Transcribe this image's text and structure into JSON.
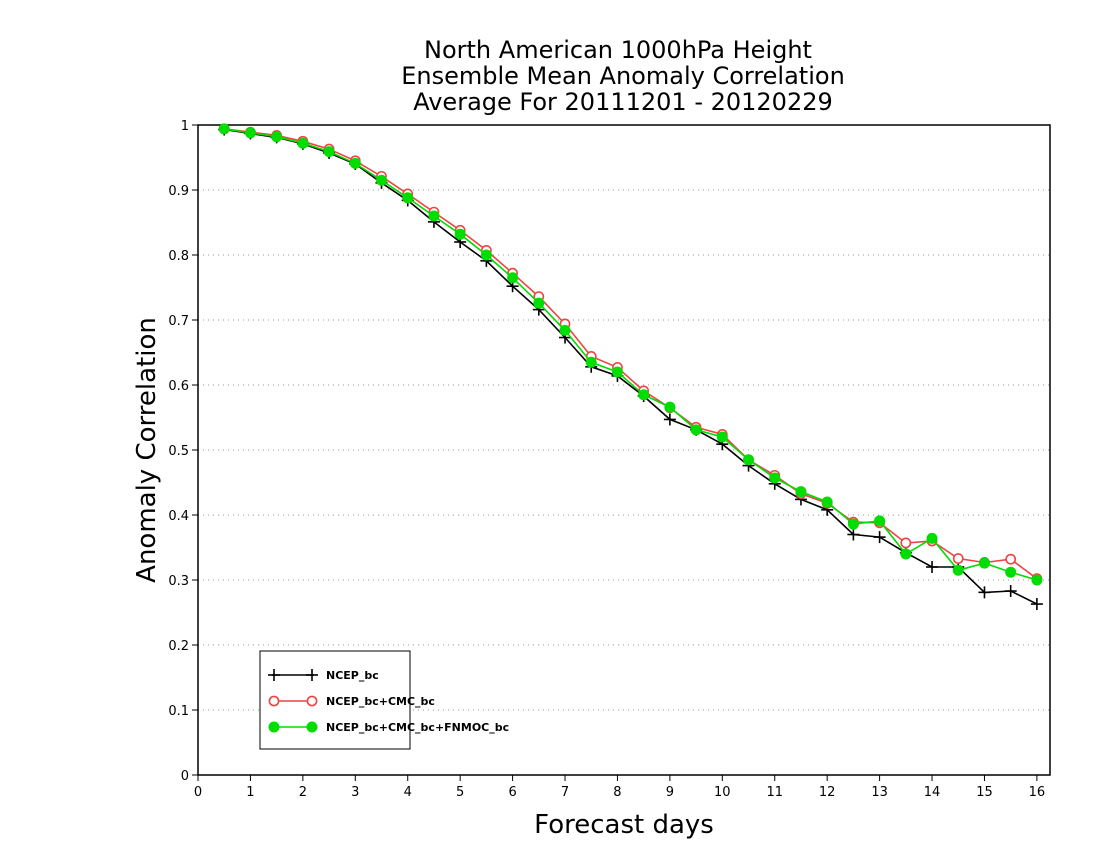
{
  "chart_data": {
    "type": "line",
    "title_lines": [
      "North American 1000hPa Height",
      "Ensemble Mean Anomaly Correlation",
      "Average For 20111201 - 20120229"
    ],
    "xlabel": "Forecast days",
    "ylabel": "Anomaly Correlation",
    "xlim": [
      0,
      16.25
    ],
    "ylim": [
      0,
      1
    ],
    "xticks": [
      0,
      1,
      2,
      3,
      4,
      5,
      6,
      7,
      8,
      9,
      10,
      11,
      12,
      13,
      14,
      15,
      16
    ],
    "yticks": [
      0,
      0.1,
      0.2,
      0.3,
      0.4,
      0.5,
      0.6,
      0.7,
      0.8,
      0.9,
      1
    ],
    "ytick_labels": [
      "0",
      "0.1",
      "0.2",
      "0.3",
      "0.4",
      "0.5",
      "0.6",
      "0.7",
      "0.8",
      "0.9",
      "1"
    ],
    "grid": "horizontal dotted",
    "legend_position": "bottom-left",
    "x": [
      0.5,
      1,
      1.5,
      2,
      2.5,
      3,
      3.5,
      4,
      4.5,
      5,
      5.5,
      6,
      6.5,
      7,
      7.5,
      8,
      8.5,
      9,
      9.5,
      10,
      10.5,
      11,
      11.5,
      12,
      12.5,
      13,
      13.5,
      14,
      14.5,
      15,
      15.5,
      16
    ],
    "series": [
      {
        "name": "NCEP_bc",
        "color": "#000000",
        "marker": "plus",
        "values": [
          0.993,
          0.987,
          0.981,
          0.971,
          0.957,
          0.94,
          0.911,
          0.884,
          0.851,
          0.82,
          0.791,
          0.752,
          0.716,
          0.673,
          0.628,
          0.614,
          0.583,
          0.547,
          0.531,
          0.509,
          0.476,
          0.448,
          0.424,
          0.408,
          0.37,
          0.366,
          0.342,
          0.32,
          0.32,
          0.281,
          0.283,
          0.263
        ]
      },
      {
        "name": "NCEP_bc+CMC_bc",
        "color": "#ee4444",
        "marker": "open-circle",
        "values": [
          0.994,
          0.989,
          0.984,
          0.975,
          0.963,
          0.945,
          0.921,
          0.894,
          0.866,
          0.838,
          0.807,
          0.772,
          0.736,
          0.694,
          0.644,
          0.627,
          0.591,
          0.565,
          0.535,
          0.524,
          0.485,
          0.461,
          0.433,
          0.418,
          0.389,
          0.388,
          0.357,
          0.36,
          0.333,
          0.327,
          0.332,
          0.302
        ]
      },
      {
        "name": "NCEP_bc+CMC_bc+FNMOC_bc",
        "color": "#00dd00",
        "marker": "filled-circle",
        "values": [
          0.994,
          0.988,
          0.982,
          0.972,
          0.959,
          0.941,
          0.915,
          0.888,
          0.86,
          0.832,
          0.8,
          0.765,
          0.726,
          0.684,
          0.635,
          0.62,
          0.585,
          0.566,
          0.531,
          0.52,
          0.485,
          0.457,
          0.436,
          0.42,
          0.386,
          0.391,
          0.34,
          0.364,
          0.315,
          0.326,
          0.312,
          0.3
        ]
      }
    ]
  }
}
